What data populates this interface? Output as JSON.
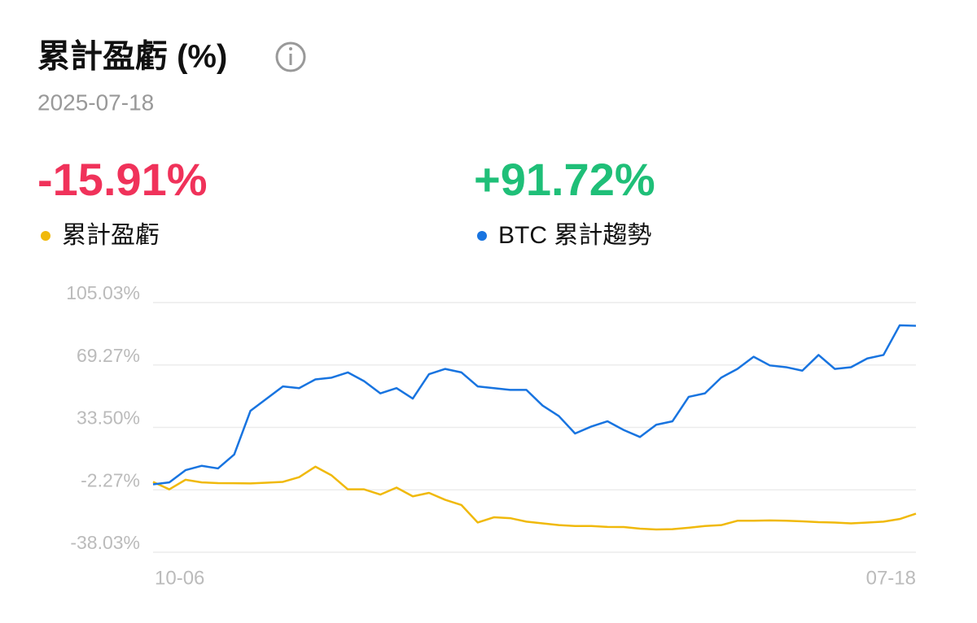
{
  "header": {
    "title": "累計盈虧 (%)",
    "date": "2025-07-18"
  },
  "stats": [
    {
      "value": "-15.91%",
      "color": "#f0325a"
    },
    {
      "value": "+91.72%",
      "color": "#1fbf78"
    }
  ],
  "chart_data": {
    "type": "line",
    "categories": [
      "10-06",
      null,
      null,
      null,
      null,
      null,
      null,
      null,
      null,
      null,
      null,
      null,
      null,
      null,
      null,
      null,
      null,
      null,
      null,
      null,
      null,
      null,
      null,
      null,
      null,
      null,
      null,
      null,
      null,
      null,
      null,
      null,
      null,
      null,
      null,
      null,
      null,
      null,
      null,
      null,
      null,
      null,
      null,
      null,
      null,
      null,
      null,
      "07-18"
    ],
    "series": [
      {
        "name": "累計盈虧",
        "color": "#f0b90b",
        "values": [
          2.3,
          -2.0,
          3.5,
          2.0,
          1.6,
          1.5,
          1.4,
          1.8,
          2.3,
          5.0,
          11.0,
          6.0,
          -2.0,
          -2.0,
          -5.0,
          -1.0,
          -6.0,
          -4.0,
          -8.0,
          -11.0,
          -21.0,
          -18.0,
          -18.5,
          -20.5,
          -21.5,
          -22.5,
          -23.0,
          -23.0,
          -23.5,
          -23.6,
          -24.5,
          -25.0,
          -24.8,
          -24.0,
          -23.0,
          -22.5,
          -20.0,
          -20.0,
          -19.8,
          -20.0,
          -20.3,
          -20.8,
          -21.0,
          -21.5,
          -21.0,
          -20.5,
          -19.0,
          -15.91
        ]
      },
      {
        "name": "BTC 累計趨勢",
        "color": "#1874e0",
        "values": [
          0.9,
          2.0,
          9.0,
          11.5,
          10.0,
          18.0,
          43.0,
          50.0,
          57.0,
          56.0,
          61.0,
          62.0,
          65.0,
          60.0,
          53.0,
          56.0,
          50.0,
          64.0,
          67.0,
          65.0,
          57.0,
          56.0,
          55.0,
          55.0,
          46.0,
          40.0,
          30.0,
          34.0,
          37.0,
          32.0,
          28.0,
          35.0,
          37.0,
          51.0,
          53.0,
          62.0,
          67.0,
          74.0,
          69.0,
          68.0,
          66.0,
          75.0,
          67.0,
          68.0,
          73.0,
          75.0,
          92.0,
          91.72
        ]
      }
    ],
    "ylim": [
      -38.03,
      105.03
    ],
    "yticks": [
      {
        "value": -38.03,
        "label": "-38.03%"
      },
      {
        "value": -2.27,
        "label": "-2.27%"
      },
      {
        "value": 33.5,
        "label": "33.50%"
      },
      {
        "value": 69.27,
        "label": "69.27%"
      },
      {
        "value": 105.03,
        "label": "105.03%"
      }
    ],
    "grid": true
  }
}
